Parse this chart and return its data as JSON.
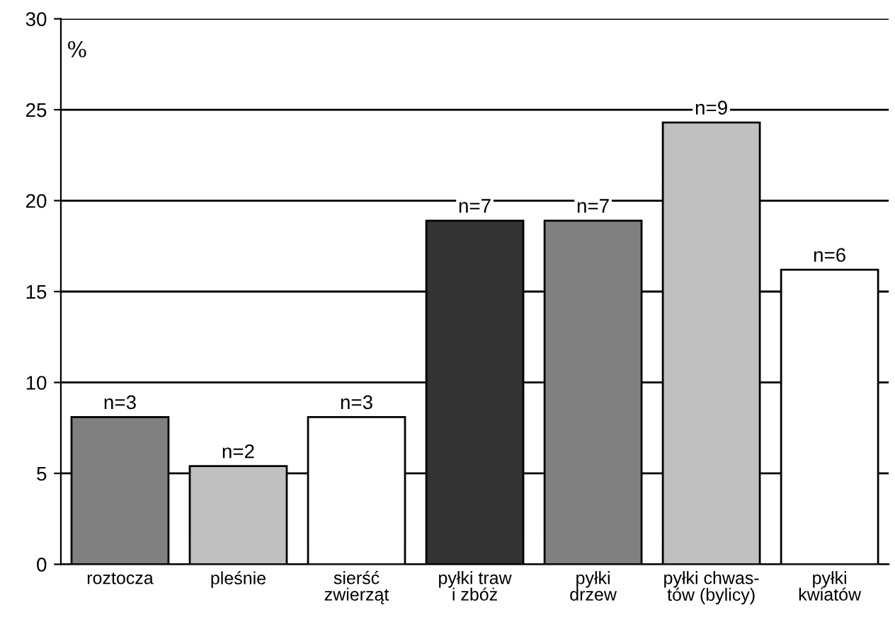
{
  "chart_data": {
    "type": "bar",
    "ylabel": "%",
    "categories": [
      "roztocza",
      "pleśnie",
      "sierść\nzwierząt",
      "pyłki traw\ni zbóż",
      "pyłki\ndrzew",
      "pyłki chwas-\ntów (bylicy)",
      "pyłki\nkwiatów"
    ],
    "values": [
      8.1,
      5.4,
      8.1,
      18.9,
      18.9,
      24.3,
      16.2
    ],
    "colors": [
      "#808080",
      "#c0c0c0",
      "#ffffff",
      "#333333",
      "#808080",
      "#c0c0c0",
      "#ffffff"
    ],
    "annotations": [
      {
        "text": "n=3",
        "x": "roztocza",
        "y": 8.1
      },
      {
        "text": "n=2",
        "x": "pleśnie",
        "y": 5.4
      },
      {
        "text": "n=3",
        "x": "sierść\nzwierząt",
        "y": 8.1
      },
      {
        "text": "n=7",
        "x": "pyłki traw\ni zbóż",
        "y": 18.9
      },
      {
        "text": "n=7",
        "x": "pyłki\ndrzew",
        "y": 18.9
      },
      {
        "text": "n=9",
        "x": "pyłki chwas-\ntów (bylicy)",
        "y": 24.3
      },
      {
        "text": "n=6",
        "x": "pyłki\nkwiatów",
        "y": 16.2
      }
    ],
    "ylim": [
      0,
      30
    ],
    "yticks": [
      0,
      5,
      10,
      15,
      20,
      25,
      30
    ],
    "grid": "y",
    "legend": false
  }
}
